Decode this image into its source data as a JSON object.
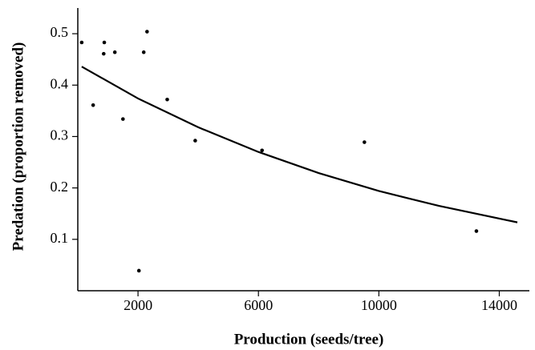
{
  "chart_data": {
    "type": "scatter",
    "x_label": "Production (seeds/tree)",
    "y_label": "Predation (proportion removed)",
    "xlim": [
      0,
      15000
    ],
    "ylim": [
      0,
      0.55
    ],
    "xticks": [
      2000,
      6000,
      10000,
      14000
    ],
    "yticks": [
      0.1,
      0.2,
      0.3,
      0.4,
      0.5
    ],
    "grid": false,
    "color": "#000000",
    "points": {
      "x": [
        130,
        880,
        860,
        1230,
        510,
        1500,
        2190,
        2300,
        2030,
        2970,
        3900,
        6120,
        9520,
        13240
      ],
      "y": [
        0.483,
        0.483,
        0.461,
        0.464,
        0.361,
        0.334,
        0.464,
        0.504,
        0.039,
        0.372,
        0.292,
        0.273,
        0.289,
        0.116
      ]
    },
    "fit": {
      "x": [
        130,
        2000,
        4000,
        6000,
        8000,
        10000,
        12000,
        14600
      ],
      "y": [
        0.436,
        0.374,
        0.318,
        0.27,
        0.229,
        0.194,
        0.165,
        0.133
      ]
    }
  }
}
